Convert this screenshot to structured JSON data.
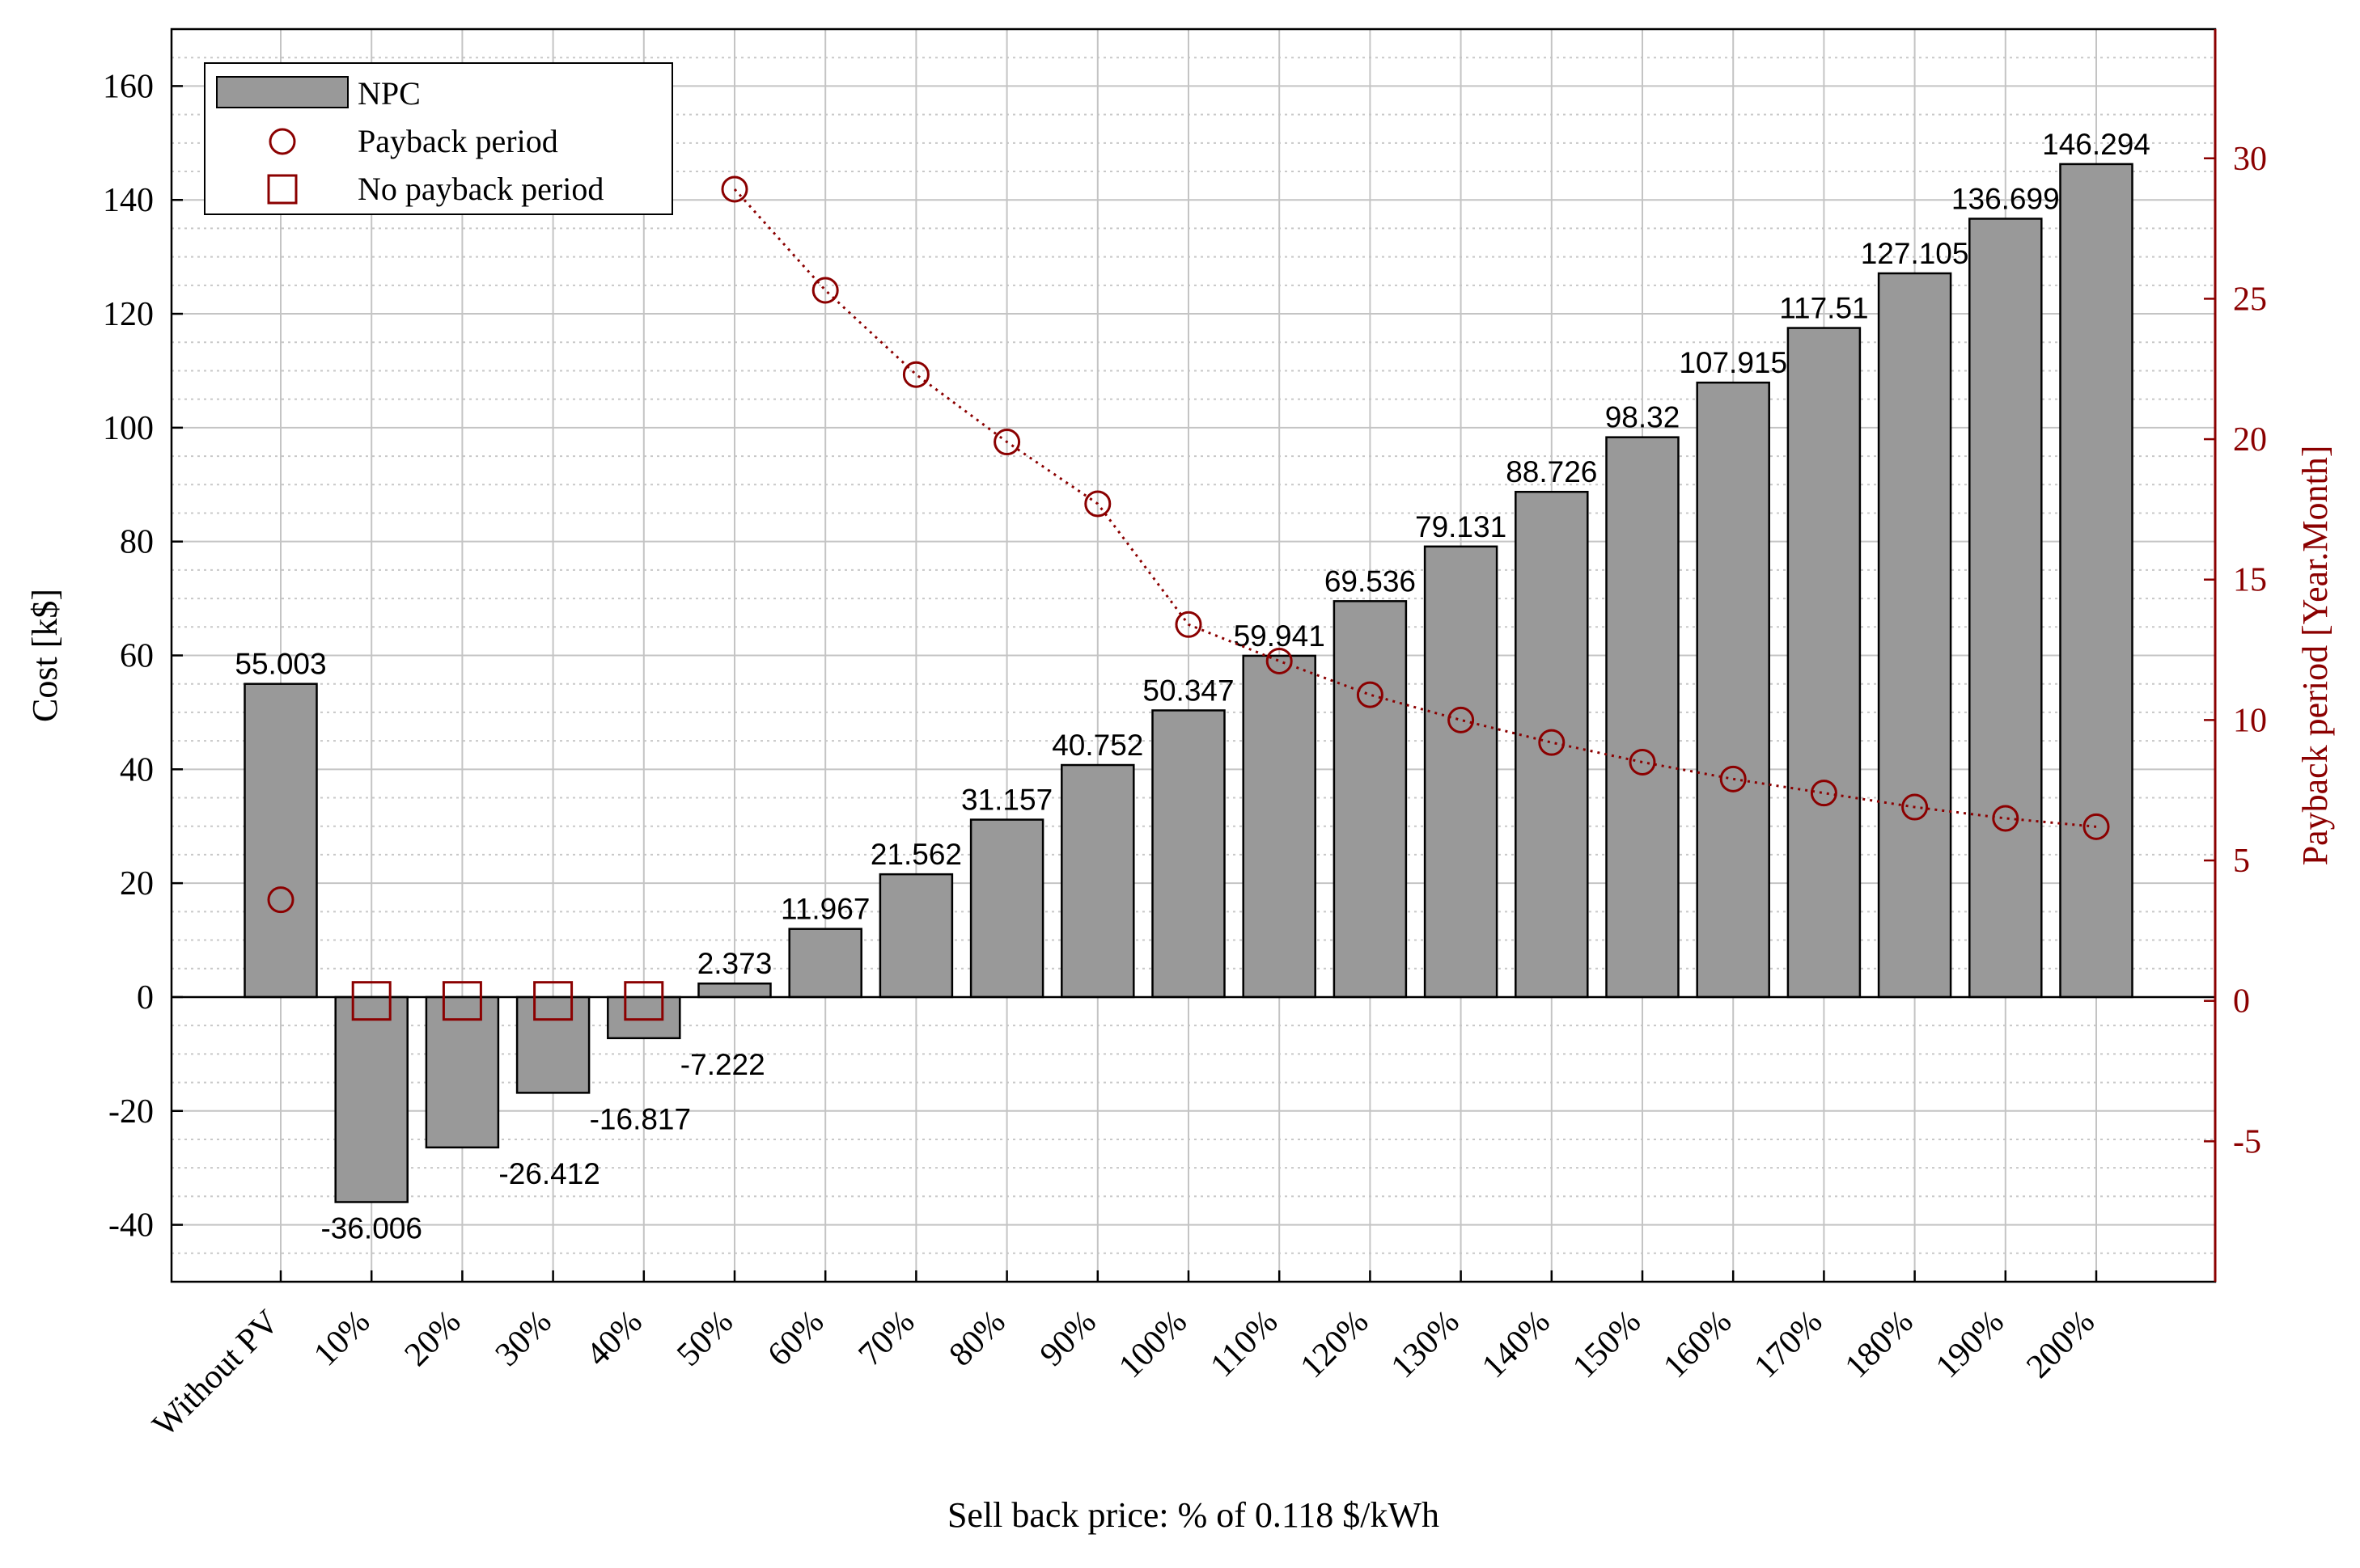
{
  "chart_data": {
    "type": "bar",
    "categories": [
      "Without PV",
      "10%",
      "20%",
      "30%",
      "40%",
      "50%",
      "60%",
      "70%",
      "80%",
      "90%",
      "100%",
      "110%",
      "120%",
      "130%",
      "140%",
      "150%",
      "160%",
      "170%",
      "180%",
      "190%",
      "200%"
    ],
    "series": [
      {
        "name": "NPC",
        "axis": "left",
        "values": [
          55.003,
          -36.006,
          -26.412,
          -16.817,
          -7.222,
          2.373,
          11.967,
          21.562,
          31.157,
          40.752,
          50.347,
          59.941,
          69.536,
          79.131,
          88.726,
          98.32,
          107.915,
          117.51,
          127.105,
          136.699,
          146.294
        ],
        "labels": [
          "55.003",
          "-36.006",
          "-26.412",
          "-16.817",
          "-7.222",
          "2.373",
          "11.967",
          "21.562",
          "31.157",
          "40.752",
          "50.347",
          "59.941",
          "69.536",
          "79.131",
          "88.726",
          "98.32",
          "107.915",
          "117.51",
          "127.105",
          "136.699",
          "146.294"
        ],
        "color": "#999999"
      },
      {
        "name": "Payback period",
        "axis": "right",
        "style": "circle markers, dotted line",
        "values": [
          3.6,
          null,
          null,
          null,
          null,
          28.9,
          25.3,
          22.3,
          19.9,
          17.7,
          13.4,
          12.1,
          10.9,
          10.0,
          9.2,
          8.5,
          7.9,
          7.4,
          6.9,
          6.5,
          6.2
        ],
        "color": "#8b0000"
      },
      {
        "name": "No payback period",
        "axis": "right",
        "style": "square markers",
        "values": [
          null,
          0,
          0,
          0,
          0,
          null,
          null,
          null,
          null,
          null,
          null,
          null,
          null,
          null,
          null,
          null,
          null,
          null,
          null,
          null,
          null
        ],
        "color": "#8b0000"
      }
    ],
    "xlabel": "Sell back price: % of 0.118 $/kWh",
    "ylabel": "Cost [k$]",
    "y2label": "Payback period [Year.Month]",
    "ylim": [
      -50,
      170
    ],
    "y2lim": [
      -10,
      34.6
    ],
    "yticks": [
      -40,
      -20,
      0,
      20,
      40,
      60,
      80,
      100,
      120,
      140,
      160
    ],
    "y2ticks": [
      -5,
      0,
      5,
      10,
      15,
      20,
      25,
      30
    ],
    "ytick_labels": [
      "-40",
      "-20",
      "0",
      "20",
      "40",
      "60",
      "80",
      "100",
      "120",
      "140",
      "160"
    ],
    "y2tick_labels": [
      "-5",
      "0",
      "5",
      "10",
      "15",
      "20",
      "25",
      "30"
    ],
    "grid": true,
    "minor_grid": true,
    "legend": {
      "position": "top-left",
      "entries": [
        "NPC",
        "Payback period",
        "No payback period"
      ]
    },
    "colors": {
      "bar_fill": "#999999",
      "bar_edge": "#000000",
      "right_axis": "#8b0000",
      "grid": "#c8c8c8"
    }
  }
}
